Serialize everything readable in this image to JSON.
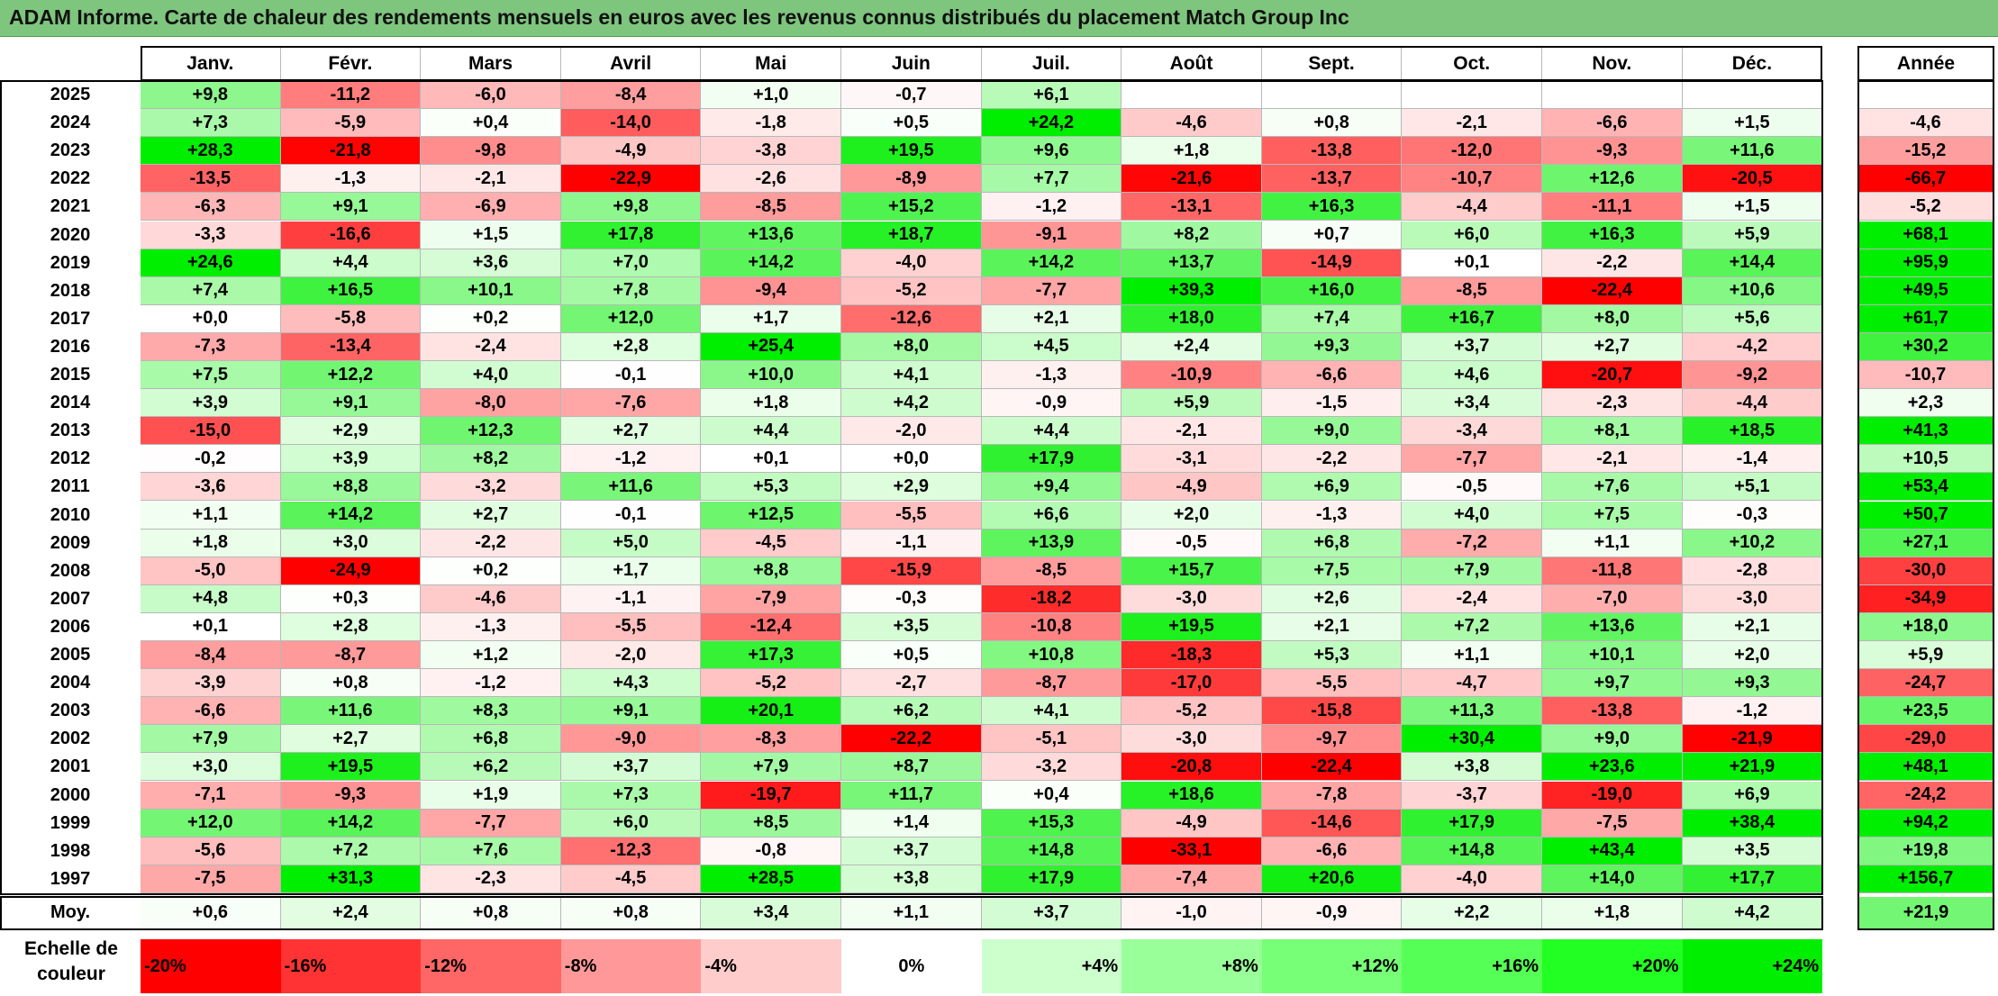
{
  "header": {
    "title": "ADAM Informe. Carte de chaleur des rendements mensuels en euros avec les revenus connus distribués du placement Match Group Inc"
  },
  "colors": {
    "strong_red": "#ff0000",
    "strong_green": "#00ee00",
    "neutral": "#ffffff",
    "title_bg": "#7ec57e"
  },
  "chart_data": {
    "type": "heatmap",
    "title": "ADAM Informe. Carte de chaleur des rendements mensuels en euros avec les revenus connus distribués du placement Match Group Inc",
    "columns": [
      "Janv.",
      "Févr.",
      "Mars",
      "Avril",
      "Mai",
      "Juin",
      "Juil.",
      "Août",
      "Sept.",
      "Oct.",
      "Nov.",
      "Déc."
    ],
    "year_column": "Année",
    "rows": [
      {
        "year": "2025",
        "values": [
          "+9,8",
          "-11,2",
          "-6,0",
          "-8,4",
          "+1,0",
          "-0,7",
          "+6,1",
          "",
          "",
          "",
          "",
          ""
        ],
        "annual": ""
      },
      {
        "year": "2024",
        "values": [
          "+7,3",
          "-5,9",
          "+0,4",
          "-14,0",
          "-1,8",
          "+0,5",
          "+24,2",
          "-4,6",
          "+0,8",
          "-2,1",
          "-6,6",
          "+1,5"
        ],
        "annual": "-4,6"
      },
      {
        "year": "2023",
        "values": [
          "+28,3",
          "-21,8",
          "-9,8",
          "-4,9",
          "-3,8",
          "+19,5",
          "+9,6",
          "+1,8",
          "-13,8",
          "-12,0",
          "-9,3",
          "+11,6"
        ],
        "annual": "-15,2"
      },
      {
        "year": "2022",
        "values": [
          "-13,5",
          "-1,3",
          "-2,1",
          "-22,9",
          "-2,6",
          "-8,9",
          "+7,7",
          "-21,6",
          "-13,7",
          "-10,7",
          "+12,6",
          "-20,5"
        ],
        "annual": "-66,7"
      },
      {
        "year": "2021",
        "values": [
          "-6,3",
          "+9,1",
          "-6,9",
          "+9,8",
          "-8,5",
          "+15,2",
          "-1,2",
          "-13,1",
          "+16,3",
          "-4,4",
          "-11,1",
          "+1,5"
        ],
        "annual": "-5,2"
      },
      {
        "year": "2020",
        "values": [
          "-3,3",
          "-16,6",
          "+1,5",
          "+17,8",
          "+13,6",
          "+18,7",
          "-9,1",
          "+8,2",
          "+0,7",
          "+6,0",
          "+16,3",
          "+5,9"
        ],
        "annual": "+68,1"
      },
      {
        "year": "2019",
        "values": [
          "+24,6",
          "+4,4",
          "+3,6",
          "+7,0",
          "+14,2",
          "-4,0",
          "+14,2",
          "+13,7",
          "-14,9",
          "+0,1",
          "-2,2",
          "+14,4"
        ],
        "annual": "+95,9"
      },
      {
        "year": "2018",
        "values": [
          "+7,4",
          "+16,5",
          "+10,1",
          "+7,8",
          "-9,4",
          "-5,2",
          "-7,7",
          "+39,3",
          "+16,0",
          "-8,5",
          "-22,4",
          "+10,6"
        ],
        "annual": "+49,5"
      },
      {
        "year": "2017",
        "values": [
          "+0,0",
          "-5,8",
          "+0,2",
          "+12,0",
          "+1,7",
          "-12,6",
          "+2,1",
          "+18,0",
          "+7,4",
          "+16,7",
          "+8,0",
          "+5,6"
        ],
        "annual": "+61,7"
      },
      {
        "year": "2016",
        "values": [
          "-7,3",
          "-13,4",
          "-2,4",
          "+2,8",
          "+25,4",
          "+8,0",
          "+4,5",
          "+2,4",
          "+9,3",
          "+3,7",
          "+2,7",
          "-4,2"
        ],
        "annual": "+30,2"
      },
      {
        "year": "2015",
        "values": [
          "+7,5",
          "+12,2",
          "+4,0",
          "-0,1",
          "+10,0",
          "+4,1",
          "-1,3",
          "-10,9",
          "-6,6",
          "+4,6",
          "-20,7",
          "-9,2"
        ],
        "annual": "-10,7"
      },
      {
        "year": "2014",
        "values": [
          "+3,9",
          "+9,1",
          "-8,0",
          "-7,6",
          "+1,8",
          "+4,2",
          "-0,9",
          "+5,9",
          "-1,5",
          "+3,4",
          "-2,3",
          "-4,4"
        ],
        "annual": "+2,3"
      },
      {
        "year": "2013",
        "values": [
          "-15,0",
          "+2,9",
          "+12,3",
          "+2,7",
          "+4,4",
          "-2,0",
          "+4,4",
          "-2,1",
          "+9,0",
          "-3,4",
          "+8,1",
          "+18,5"
        ],
        "annual": "+41,3"
      },
      {
        "year": "2012",
        "values": [
          "-0,2",
          "+3,9",
          "+8,2",
          "-1,2",
          "+0,1",
          "+0,0",
          "+17,9",
          "-3,1",
          "-2,2",
          "-7,7",
          "-2,1",
          "-1,4"
        ],
        "annual": "+10,5"
      },
      {
        "year": "2011",
        "values": [
          "-3,6",
          "+8,8",
          "-3,2",
          "+11,6",
          "+5,3",
          "+2,9",
          "+9,4",
          "-4,9",
          "+6,9",
          "-0,5",
          "+7,6",
          "+5,1"
        ],
        "annual": "+53,4"
      },
      {
        "year": "2010",
        "values": [
          "+1,1",
          "+14,2",
          "+2,7",
          "-0,1",
          "+12,5",
          "-5,5",
          "+6,6",
          "+2,0",
          "-1,3",
          "+4,0",
          "+7,5",
          "-0,3"
        ],
        "annual": "+50,7"
      },
      {
        "year": "2009",
        "values": [
          "+1,8",
          "+3,0",
          "-2,2",
          "+5,0",
          "-4,5",
          "-1,1",
          "+13,9",
          "-0,5",
          "+6,8",
          "-7,2",
          "+1,1",
          "+10,2"
        ],
        "annual": "+27,1"
      },
      {
        "year": "2008",
        "values": [
          "-5,0",
          "-24,9",
          "+0,2",
          "+1,7",
          "+8,8",
          "-15,9",
          "-8,5",
          "+15,7",
          "+7,5",
          "+7,9",
          "-11,8",
          "-2,8"
        ],
        "annual": "-30,0"
      },
      {
        "year": "2007",
        "values": [
          "+4,8",
          "+0,3",
          "-4,6",
          "-1,1",
          "-7,9",
          "-0,3",
          "-18,2",
          "-3,0",
          "+2,6",
          "-2,4",
          "-7,0",
          "-3,0"
        ],
        "annual": "-34,9"
      },
      {
        "year": "2006",
        "values": [
          "+0,1",
          "+2,8",
          "-1,3",
          "-5,5",
          "-12,4",
          "+3,5",
          "-10,8",
          "+19,5",
          "+2,1",
          "+7,2",
          "+13,6",
          "+2,1"
        ],
        "annual": "+18,0"
      },
      {
        "year": "2005",
        "values": [
          "-8,4",
          "-8,7",
          "+1,2",
          "-2,0",
          "+17,3",
          "+0,5",
          "+10,8",
          "-18,3",
          "+5,3",
          "+1,1",
          "+10,1",
          "+2,0"
        ],
        "annual": "+5,9"
      },
      {
        "year": "2004",
        "values": [
          "-3,9",
          "+0,8",
          "-1,2",
          "+4,3",
          "-5,2",
          "-2,7",
          "-8,7",
          "-17,0",
          "-5,5",
          "-4,7",
          "+9,7",
          "+9,3"
        ],
        "annual": "-24,7"
      },
      {
        "year": "2003",
        "values": [
          "-6,6",
          "+11,6",
          "+8,3",
          "+9,1",
          "+20,1",
          "+6,2",
          "+4,1",
          "-5,2",
          "-15,8",
          "+11,3",
          "-13,8",
          "-1,2"
        ],
        "annual": "+23,5"
      },
      {
        "year": "2002",
        "values": [
          "+7,9",
          "+2,7",
          "+6,8",
          "-9,0",
          "-8,3",
          "-22,2",
          "-5,1",
          "-3,0",
          "-9,7",
          "+30,4",
          "+9,0",
          "-21,9"
        ],
        "annual": "-29,0"
      },
      {
        "year": "2001",
        "values": [
          "+3,0",
          "+19,5",
          "+6,2",
          "+3,7",
          "+7,9",
          "+8,7",
          "-3,2",
          "-20,8",
          "-22,4",
          "+3,8",
          "+23,6",
          "+21,9"
        ],
        "annual": "+48,1"
      },
      {
        "year": "2000",
        "values": [
          "-7,1",
          "-9,3",
          "+1,9",
          "+7,3",
          "-19,7",
          "+11,7",
          "+0,4",
          "+18,6",
          "-7,8",
          "-3,7",
          "-19,0",
          "+6,9"
        ],
        "annual": "-24,2"
      },
      {
        "year": "1999",
        "values": [
          "+12,0",
          "+14,2",
          "-7,7",
          "+6,0",
          "+8,5",
          "+1,4",
          "+15,3",
          "-4,9",
          "-14,6",
          "+17,9",
          "-7,5",
          "+38,4"
        ],
        "annual": "+94,2"
      },
      {
        "year": "1998",
        "values": [
          "-5,6",
          "+7,2",
          "+7,6",
          "-12,3",
          "-0,8",
          "+3,7",
          "+14,8",
          "-33,1",
          "-6,6",
          "+14,8",
          "+43,4",
          "+3,5"
        ],
        "annual": "+19,8"
      },
      {
        "year": "1997",
        "values": [
          "-7,5",
          "+31,3",
          "-2,3",
          "-4,5",
          "+28,5",
          "+3,8",
          "+17,9",
          "-7,4",
          "+20,6",
          "-4,0",
          "+14,0",
          "+17,7"
        ],
        "annual": "+156,7"
      }
    ],
    "average": {
      "label": "Moy.",
      "values": [
        "+0,6",
        "+2,4",
        "+0,8",
        "+0,8",
        "+3,4",
        "+1,1",
        "+3,7",
        "-1,0",
        "-0,9",
        "+2,2",
        "+1,8",
        "+4,2"
      ],
      "annual": "+21,9"
    },
    "legend": {
      "label": "Echelle de couleur",
      "steps": [
        {
          "label": "-20%",
          "value": -20,
          "color": "#ff0000",
          "align": "left"
        },
        {
          "label": "-16%",
          "value": -16,
          "color": "#ff3333",
          "align": "left"
        },
        {
          "label": "-12%",
          "value": -12,
          "color": "#ff6666",
          "align": "left"
        },
        {
          "label": "-8%",
          "value": -8,
          "color": "#ff9999",
          "align": "left"
        },
        {
          "label": "-4%",
          "value": -4,
          "color": "#ffcccc",
          "align": "left"
        },
        {
          "label": "0%",
          "value": 0,
          "color": "#ffffff",
          "align": "center"
        },
        {
          "label": "+4%",
          "value": 4,
          "color": "#ccffcc",
          "align": "right"
        },
        {
          "label": "+8%",
          "value": 8,
          "color": "#99ff99",
          "align": "right"
        },
        {
          "label": "+12%",
          "value": 12,
          "color": "#77ff77",
          "align": "right"
        },
        {
          "label": "+16%",
          "value": 16,
          "color": "#55ff55",
          "align": "right"
        },
        {
          "label": "+20%",
          "value": 20,
          "color": "#22ff22",
          "align": "right"
        },
        {
          "label": "+24%",
          "value": 24,
          "color": "#00ee00",
          "align": "right"
        }
      ]
    }
  }
}
